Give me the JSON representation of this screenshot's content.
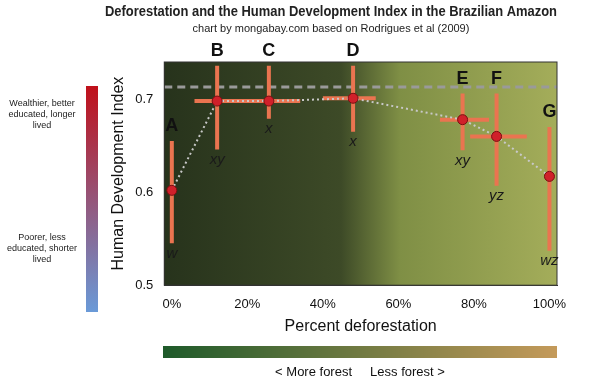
{
  "chart_data": {
    "type": "scatter",
    "title": "Deforestation and the Human Development Index in the Brazilian Amazon",
    "subtitle": "chart by mongabay.com based on Rodrigues et al (2009)",
    "x_label": "Percent deforestation",
    "y_label": "Human Development Index",
    "x": [
      0,
      12,
      25.7,
      48,
      77,
      86,
      100
    ],
    "values": [
      0.602,
      0.698,
      0.698,
      0.701,
      0.678,
      0.66,
      0.617
    ],
    "point_labels": [
      "A",
      "B",
      "C",
      "D",
      "E",
      "F",
      "G"
    ],
    "group_labels": [
      "w",
      "xy",
      "x",
      "x",
      "xy",
      "yz",
      "wz"
    ],
    "x_error": [
      null,
      [
        6,
        19
      ],
      [
        17,
        34
      ],
      [
        40,
        54
      ],
      [
        71,
        84
      ],
      [
        79,
        94
      ],
      null
    ],
    "y_error": [
      [
        0.545,
        0.655
      ],
      [
        0.646,
        0.736
      ],
      [
        0.679,
        0.736
      ],
      [
        0.665,
        0.736
      ],
      [
        0.645,
        0.706
      ],
      [
        0.607,
        0.706
      ],
      [
        0.537,
        0.67
      ]
    ],
    "reference_y": 0.713,
    "xlim": [
      -2,
      102
    ],
    "xticks": [
      {
        "value": 0,
        "label": "0%"
      },
      {
        "value": 20,
        "label": "20%"
      },
      {
        "value": 40,
        "label": "40%"
      },
      {
        "value": 60,
        "label": "60%"
      },
      {
        "value": 80,
        "label": "80%"
      },
      {
        "value": 100,
        "label": "100%"
      }
    ],
    "ylim": [
      0.5,
      0.74
    ],
    "yticks": [
      0.5,
      0.6,
      0.7
    ],
    "grid": false,
    "color": "#d0202a",
    "marker": "circle",
    "line_style": "dotted",
    "color_bar": {
      "top_label": "Wealthier, better educated, longer lived",
      "bottom_label": "Poorer, less educated, shorter lived",
      "colors": [
        "#c0101a",
        "#6a9ad8"
      ]
    },
    "forest_bar": {
      "label": "< More forest     Less forest >",
      "colors": [
        "#1e5a2a",
        "#c49a5a"
      ]
    }
  }
}
